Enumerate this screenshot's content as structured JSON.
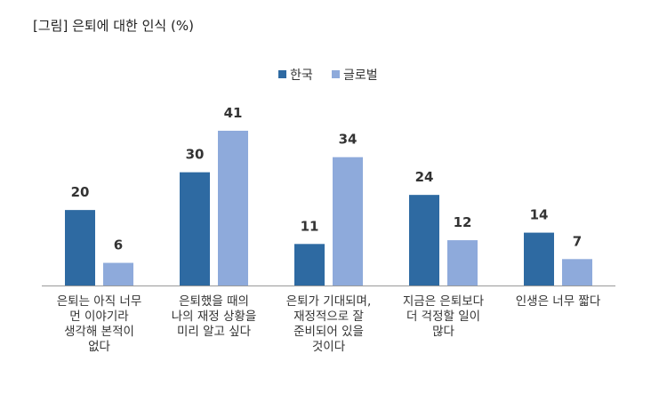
{
  "title": "[그림] 은퇴에 대한 인식 (%)",
  "chart_data": {
    "type": "bar",
    "title": "[그림] 은퇴에 대한 인식 (%)",
    "xlabel": "",
    "ylabel": "",
    "ylim": [
      0,
      41
    ],
    "grid": false,
    "legend_position": "top-center",
    "categories": [
      "은퇴는 아직 너무 먼 이야기라 생각해 본적이 없다",
      "은퇴했을 때의 나의 재정 상황을 미리 알고 싶다",
      "은퇴가 기대되며, 재정적으로 잘 준비되어 있을 것이다",
      "지금은 은퇴보다 더 걱정할 일이 많다",
      "인생은 너무 짧다"
    ],
    "category_lines": [
      [
        "은퇴는 아직 너무",
        "먼 이야기라",
        "생각해 본적이",
        "없다"
      ],
      [
        "은퇴했을 때의",
        "나의 재정 상황을",
        "미리 알고 싶다"
      ],
      [
        "은퇴가 기대되며,",
        "재정적으로 잘",
        "준비되어 있을",
        "것이다"
      ],
      [
        "지금은 은퇴보다",
        "더 걱정할 일이",
        "많다"
      ],
      [
        "인생은 너무 짧다"
      ]
    ],
    "series": [
      {
        "name": "한국",
        "color": "#2e6aa2",
        "values": [
          20,
          30,
          11,
          24,
          14
        ]
      },
      {
        "name": "글로벌",
        "color": "#8eaadb",
        "values": [
          6,
          41,
          34,
          12,
          7
        ]
      }
    ],
    "axis_color": "#9a9a9a"
  }
}
